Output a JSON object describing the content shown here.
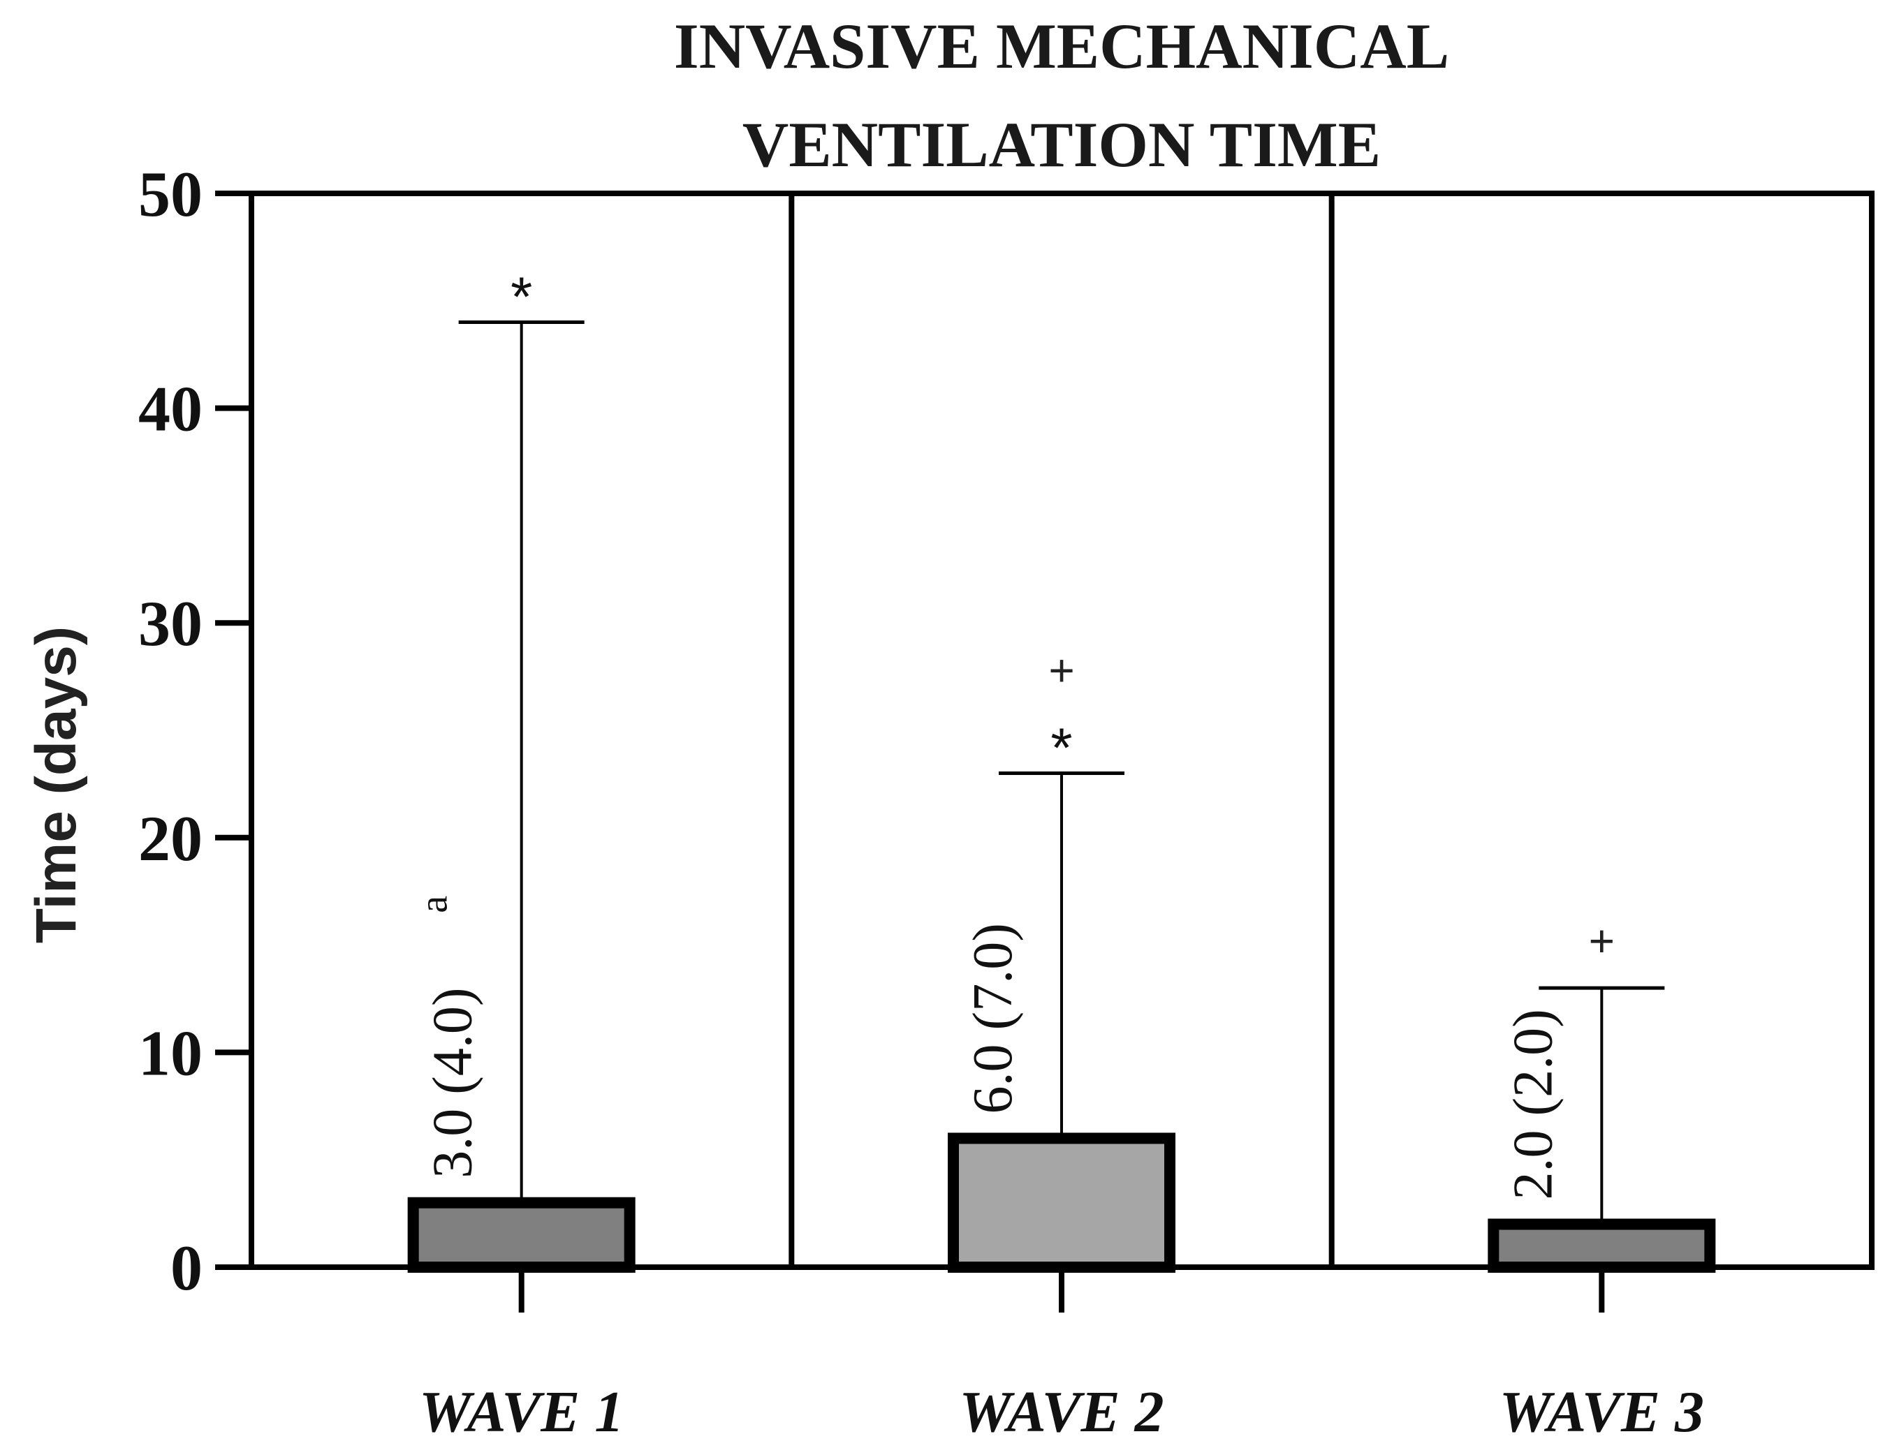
{
  "chart_data": {
    "type": "bar",
    "title_lines": [
      "INVASIVE MECHANICAL",
      "VENTILATION TIME"
    ],
    "xlabel": "",
    "ylabel": "Time (days)",
    "ylim": [
      0,
      50
    ],
    "yticks": [
      0,
      10,
      20,
      30,
      40,
      50
    ],
    "grid": false,
    "categories": [
      "WAVE 1",
      "WAVE 2",
      "WAVE 3"
    ],
    "values": [
      3.0,
      6.0,
      2.0
    ],
    "error_upper": [
      44,
      23,
      13
    ],
    "value_labels": [
      "3.0 (4.0)",
      "6.0 (7.0)",
      "2.0 (2.0)"
    ],
    "value_superscripts": [
      "a",
      "",
      ""
    ],
    "significance_marks": [
      {
        "category": "WAVE 1",
        "symbol": "*",
        "y": 45.6
      },
      {
        "category": "WAVE 2",
        "symbol": "*",
        "y": 24.6
      },
      {
        "category": "WAVE 2",
        "symbol": "+",
        "y": 27.8
      },
      {
        "category": "WAVE 3",
        "symbol": "+",
        "y": 15.2
      }
    ],
    "colors": {
      "bar_fills": [
        "#808080",
        "#a6a6a6",
        "#808080"
      ],
      "outline": "#000000"
    }
  }
}
